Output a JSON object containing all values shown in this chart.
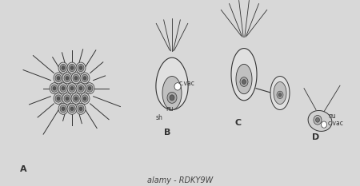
{
  "fig_width": 4.5,
  "fig_height": 2.33,
  "dpi": 100,
  "bg_color": "#d8d8d8",
  "panel_bg": "#e8e8e8",
  "label_A": "A",
  "label_B": "B",
  "label_C": "C",
  "label_D": "D",
  "label_sh": "sh",
  "label_nu_B": "nu",
  "label_cvac_B": "c.vac",
  "label_nu_D": "nu",
  "label_cvac_D": "c.vac",
  "watermark": "alamy - RDKY9W",
  "line_color": "#333333",
  "cell_color": "#aaaaaa",
  "cell_inner": "#888888",
  "font_size_label": 8,
  "font_size_annot": 5.5
}
